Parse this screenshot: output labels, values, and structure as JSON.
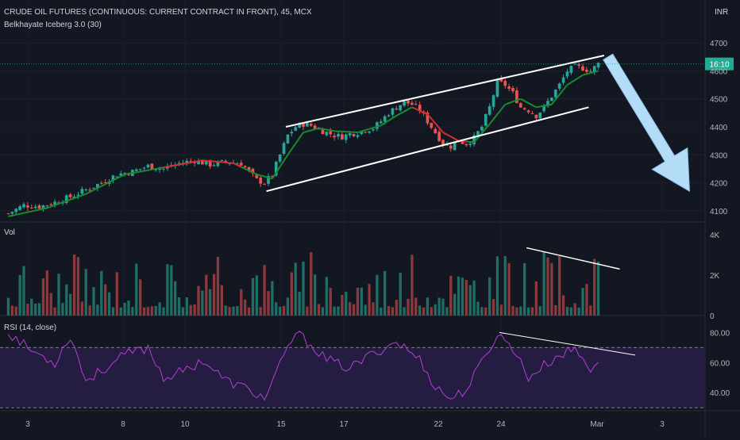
{
  "header": {
    "title": "CRUDE OIL FUTURES (CONTINUOUS: CURRENT CONTRACT IN FRONT), 45, MCX",
    "indicator": "Belkhayate Iceberg 3.0 (30)",
    "currency": "INR"
  },
  "price_panel": {
    "ticks": [
      "4700",
      "4600",
      "4500",
      "4400",
      "4300",
      "4200",
      "4100"
    ],
    "current_badge": "16:10"
  },
  "volume_panel": {
    "label": "Vol",
    "ticks": [
      "4K",
      "2K",
      "0"
    ]
  },
  "rsi_panel": {
    "label": "RSI (14, close)",
    "ticks": [
      "80.00",
      "60.00",
      "40.00"
    ]
  },
  "x_axis": {
    "labels": [
      "3",
      "8",
      "10",
      "15",
      "17",
      "22",
      "24",
      "Mar",
      "3"
    ]
  },
  "colors": {
    "background": "#131722",
    "up_candle": "#26a69a",
    "down_candle": "#ef5350",
    "iceberg_up": "#1b8a2e",
    "iceberg_down": "#d32f2f",
    "rsi_line": "#b23fd6",
    "rsi_band": "#2a1f4a",
    "arrow": "#b3dcf7",
    "badge": "#22ab94"
  },
  "chart_data": [
    {
      "type": "candlestick",
      "title": "CRUDE OIL FUTURES (CONTINUOUS: CURRENT CONTRACT IN FRONT), 45, MCX",
      "y_axis_ticks": [
        4100,
        4200,
        4300,
        4400,
        4500,
        4600,
        4700
      ],
      "ylim": [
        4060,
        4740
      ],
      "x_tick_labels": [
        "3",
        "8",
        "10",
        "15",
        "17",
        "22",
        "24",
        "Mar",
        "3"
      ],
      "close_path": [
        [
          0,
          4090
        ],
        [
          4,
          4120
        ],
        [
          8,
          4115
        ],
        [
          12,
          4130
        ],
        [
          16,
          4150
        ],
        [
          20,
          4175
        ],
        [
          24,
          4200
        ],
        [
          28,
          4230
        ],
        [
          32,
          4240
        ],
        [
          36,
          4260
        ],
        [
          40,
          4250
        ],
        [
          44,
          4270
        ],
        [
          48,
          4280
        ],
        [
          52,
          4265
        ],
        [
          56,
          4275
        ],
        [
          60,
          4270
        ],
        [
          62,
          4240
        ],
        [
          64,
          4210
        ],
        [
          66,
          4200
        ],
        [
          68,
          4230
        ],
        [
          70,
          4300
        ],
        [
          72,
          4370
        ],
        [
          74,
          4400
        ],
        [
          76,
          4410
        ],
        [
          78,
          4405
        ],
        [
          80,
          4390
        ],
        [
          82,
          4380
        ],
        [
          84,
          4370
        ],
        [
          86,
          4365
        ],
        [
          88,
          4375
        ],
        [
          90,
          4380
        ],
        [
          92,
          4390
        ],
        [
          94,
          4395
        ],
        [
          96,
          4420
        ],
        [
          98,
          4450
        ],
        [
          100,
          4470
        ],
        [
          102,
          4490
        ],
        [
          104,
          4480
        ],
        [
          106,
          4460
        ],
        [
          108,
          4420
        ],
        [
          110,
          4380
        ],
        [
          112,
          4340
        ],
        [
          114,
          4330
        ],
        [
          116,
          4350
        ],
        [
          118,
          4340
        ],
        [
          120,
          4360
        ],
        [
          122,
          4400
        ],
        [
          124,
          4470
        ],
        [
          126,
          4560
        ],
        [
          128,
          4550
        ],
        [
          130,
          4520
        ],
        [
          132,
          4470
        ],
        [
          134,
          4460
        ],
        [
          136,
          4440
        ],
        [
          138,
          4470
        ],
        [
          140,
          4510
        ],
        [
          142,
          4550
        ],
        [
          144,
          4600
        ],
        [
          146,
          4615
        ],
        [
          148,
          4610
        ],
        [
          150,
          4600
        ],
        [
          152,
          4625
        ]
      ],
      "iceberg_line": [
        [
          0,
          4080
        ],
        [
          10,
          4110
        ],
        [
          20,
          4160
        ],
        [
          30,
          4230
        ],
        [
          40,
          4255
        ],
        [
          50,
          4280
        ],
        [
          58,
          4270
        ],
        [
          64,
          4230
        ],
        [
          68,
          4215
        ],
        [
          72,
          4300
        ],
        [
          76,
          4380
        ],
        [
          80,
          4395
        ],
        [
          84,
          4385
        ],
        [
          90,
          4380
        ],
        [
          96,
          4405
        ],
        [
          100,
          4440
        ],
        [
          104,
          4470
        ],
        [
          108,
          4445
        ],
        [
          112,
          4380
        ],
        [
          116,
          4350
        ],
        [
          120,
          4345
        ],
        [
          124,
          4410
        ],
        [
          128,
          4480
        ],
        [
          132,
          4500
        ],
        [
          136,
          4470
        ],
        [
          140,
          4480
        ],
        [
          144,
          4550
        ],
        [
          148,
          4585
        ],
        [
          152,
          4600
        ]
      ],
      "red_segments": [
        [
          40,
          60
        ],
        [
          104,
          118
        ]
      ],
      "channel_upper": [
        [
          72,
          4400
        ],
        [
          154,
          4655
        ]
      ],
      "channel_lower": [
        [
          67,
          4170
        ],
        [
          150,
          4470
        ]
      ],
      "forecast_arrow": {
        "from": [
          155,
          4650
        ],
        "to": [
          176,
          4170
        ]
      },
      "current_price_badge": "16:10"
    },
    {
      "type": "bar",
      "title": "Vol",
      "y_axis_ticks": [
        "0",
        "2K",
        "4K"
      ],
      "ylim": [
        0,
        4000
      ],
      "bar_count": 153,
      "level_range": [
        400,
        3200
      ],
      "divergence_line": [
        [
          134,
          3350
        ],
        [
          158,
          2300
        ]
      ]
    },
    {
      "type": "line",
      "title": "RSI (14, close)",
      "y_axis_ticks": [
        40,
        60,
        80
      ],
      "ylim": [
        28,
        86
      ],
      "band": [
        30,
        70
      ],
      "path": [
        [
          0,
          80
        ],
        [
          6,
          68
        ],
        [
          12,
          60
        ],
        [
          16,
          78
        ],
        [
          20,
          48
        ],
        [
          26,
          58
        ],
        [
          30,
          65
        ],
        [
          36,
          70
        ],
        [
          40,
          50
        ],
        [
          46,
          55
        ],
        [
          50,
          62
        ],
        [
          56,
          48
        ],
        [
          62,
          42
        ],
        [
          66,
          36
        ],
        [
          70,
          58
        ],
        [
          74,
          80
        ],
        [
          78,
          72
        ],
        [
          82,
          62
        ],
        [
          88,
          56
        ],
        [
          94,
          66
        ],
        [
          100,
          74
        ],
        [
          106,
          62
        ],
        [
          110,
          44
        ],
        [
          114,
          36
        ],
        [
          118,
          42
        ],
        [
          122,
          60
        ],
        [
          126,
          79
        ],
        [
          130,
          70
        ],
        [
          134,
          50
        ],
        [
          138,
          58
        ],
        [
          142,
          65
        ],
        [
          146,
          69
        ],
        [
          150,
          56
        ],
        [
          153,
          64
        ]
      ],
      "divergence_line": [
        [
          127,
          80
        ],
        [
          162,
          65
        ]
      ]
    }
  ]
}
